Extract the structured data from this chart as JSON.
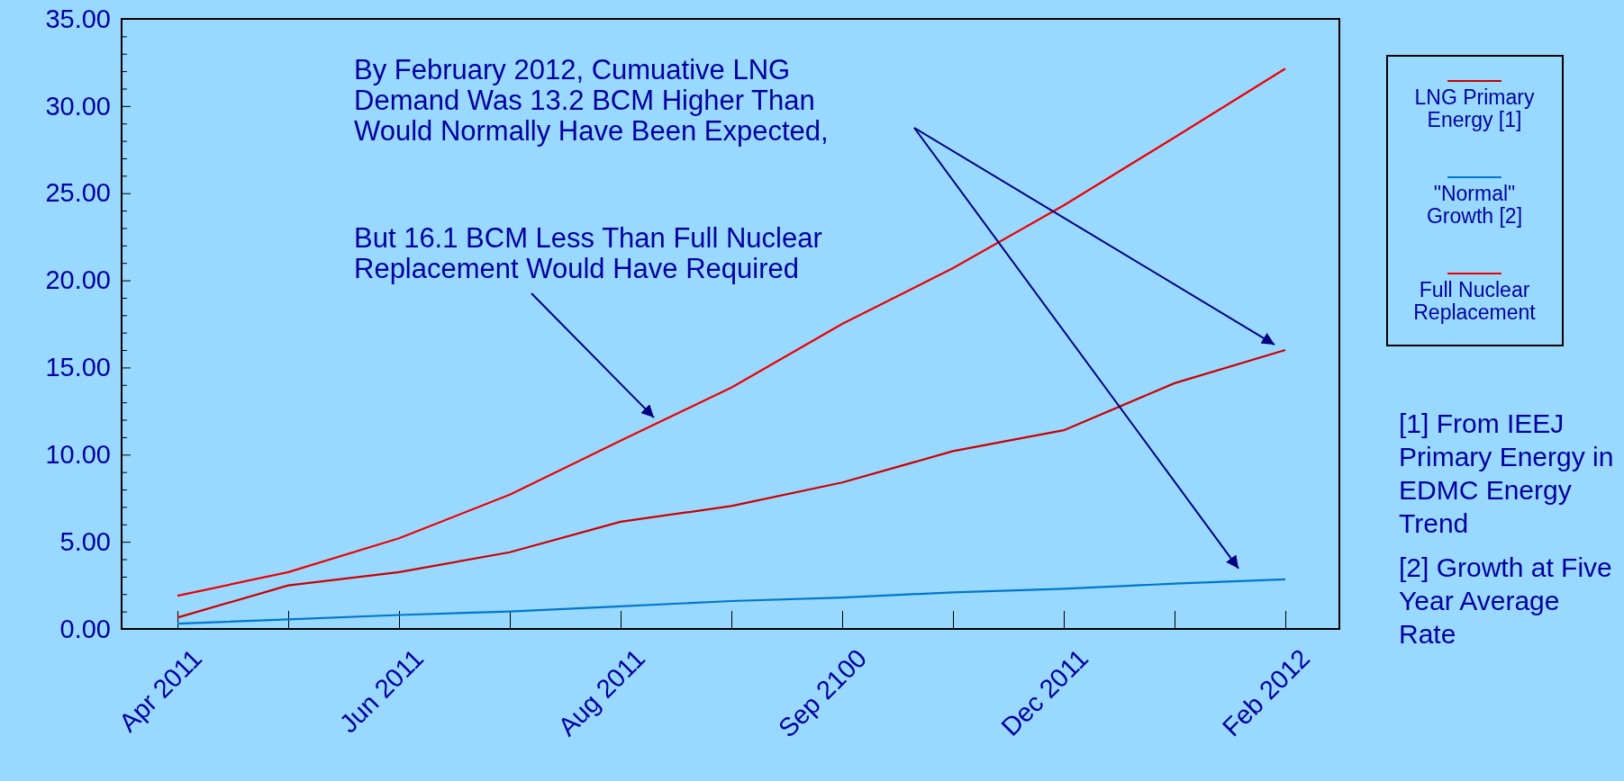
{
  "chart_data": {
    "type": "line",
    "categories": [
      "Apr 2011",
      null,
      "Jun 2011",
      null,
      "Aug 2011",
      null,
      "Sep 2100",
      null,
      "Dec 2011",
      null,
      "Feb 2012"
    ],
    "series": [
      {
        "name": "LNG Primary Energy [1]",
        "color": "#cc0000",
        "values": [
          0.65,
          2.5,
          3.26,
          4.4,
          6.15,
          7.05,
          8.4,
          10.2,
          11.4,
          14.1,
          16.0
        ]
      },
      {
        "name": "\"Normal\" Growth [2]",
        "color": "#0077cc",
        "values": [
          0.3,
          0.55,
          0.8,
          1.0,
          1.3,
          1.6,
          1.8,
          2.1,
          2.3,
          2.6,
          2.85
        ]
      },
      {
        "name": "Full Nuclear Replacement",
        "color": "#ee0000",
        "values": [
          1.9,
          3.26,
          5.2,
          7.7,
          10.8,
          13.85,
          17.5,
          20.7,
          24.3,
          28.2,
          32.15
        ]
      }
    ],
    "ylim": [
      0,
      35
    ],
    "yticks": [
      {
        "value": 0,
        "label": "0.00"
      },
      {
        "value": 1,
        "label": null
      },
      {
        "value": 2,
        "label": null
      },
      {
        "value": 3,
        "label": null
      },
      {
        "value": 4,
        "label": null
      },
      {
        "value": 5,
        "label": "5.00"
      },
      {
        "value": 6,
        "label": null
      },
      {
        "value": 7,
        "label": null
      },
      {
        "value": 8,
        "label": null
      },
      {
        "value": 9,
        "label": null
      },
      {
        "value": 10,
        "label": "10.00"
      },
      {
        "value": 11,
        "label": null
      },
      {
        "value": 12,
        "label": null
      },
      {
        "value": 13,
        "label": null
      },
      {
        "value": 14,
        "label": null
      },
      {
        "value": 15,
        "label": "15.00"
      },
      {
        "value": 16,
        "label": null
      },
      {
        "value": 17,
        "label": null
      },
      {
        "value": 18,
        "label": null
      },
      {
        "value": 19,
        "label": null
      },
      {
        "value": 20,
        "label": "20.00"
      },
      {
        "value": 21,
        "label": null
      },
      {
        "value": 22,
        "label": null
      },
      {
        "value": 23,
        "label": null
      },
      {
        "value": 24,
        "label": null
      },
      {
        "value": 25,
        "label": "25.00"
      },
      {
        "value": 26,
        "label": null
      },
      {
        "value": 27,
        "label": null
      },
      {
        "value": 28,
        "label": null
      },
      {
        "value": 29,
        "label": null
      },
      {
        "value": 30,
        "label": "30.00"
      },
      {
        "value": 31,
        "label": null
      },
      {
        "value": 32,
        "label": null
      },
      {
        "value": 33,
        "label": null
      },
      {
        "value": 34,
        "label": null
      },
      {
        "value": 35,
        "label": "35.00"
      }
    ],
    "legend": "right",
    "line_style": "solid",
    "annotations": [
      "By February 2012, Cumuative LNG Demand Was 13.2 BCM Higher Than Would Normally Have Been Expected,",
      "But 16.1 BCM Less Than Full Nuclear Replacement Would Have Required",
      "[1]  From IEEJ Primary Energy in EDMC Energy Trend",
      "[2]  Growth at Five Year Average Rate"
    ]
  }
}
